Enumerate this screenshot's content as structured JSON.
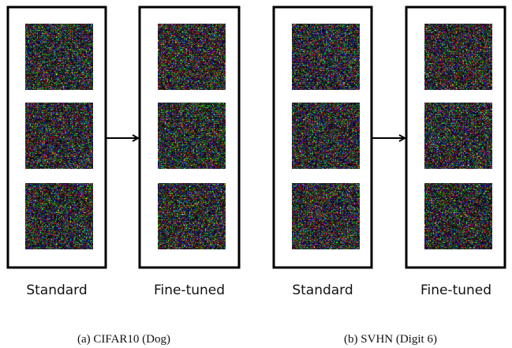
{
  "groups": [
    {
      "caption": "(a) CIFAR10 (Dog)",
      "panels": [
        {
          "label": "Standard"
        },
        {
          "label": "Fine-tuned"
        }
      ]
    },
    {
      "caption": "(b) SVHN (Digit 6)",
      "panels": [
        {
          "label": "Standard"
        },
        {
          "label": "Fine-tuned"
        }
      ]
    }
  ]
}
